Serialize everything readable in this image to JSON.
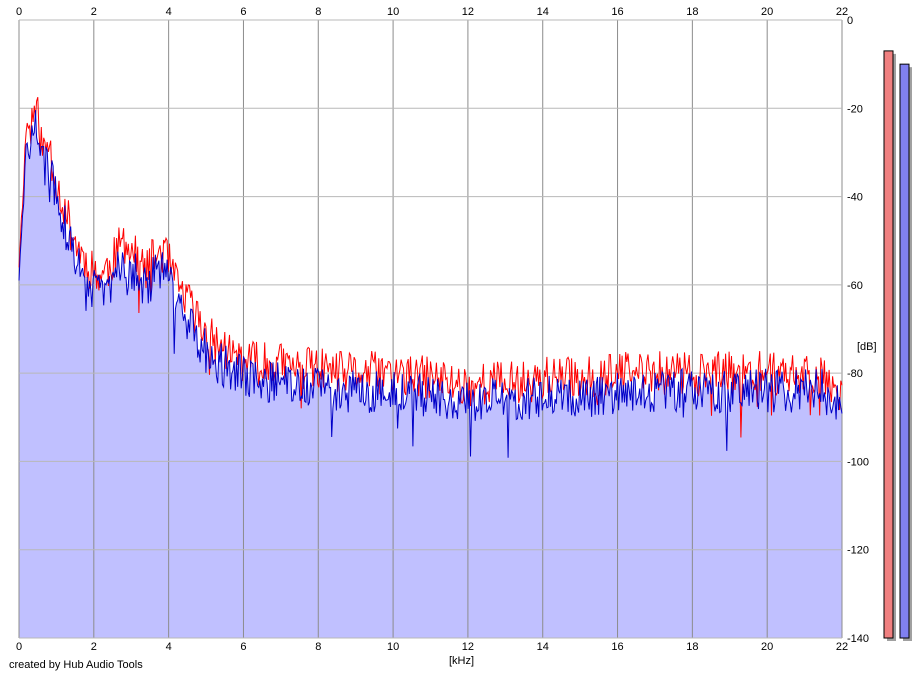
{
  "credit": "created by Hub Audio Tools",
  "colors": {
    "background": "#ffffff",
    "grid": "#b8b8b8",
    "grid_major": "#8c8c8c",
    "fill": "#c0c0ff",
    "left_channel": "#ff0000",
    "right_channel": "#0000c8",
    "left_meter": "#f08080",
    "right_meter": "#8080f0"
  },
  "chart_data": {
    "type": "line",
    "title": "",
    "xlabel": "[kHz]",
    "ylabel": "[dB]",
    "xlim": [
      0,
      22
    ],
    "ylim": [
      -140,
      0
    ],
    "x_ticks": [
      "0",
      "2",
      "4",
      "6",
      "8",
      "10",
      "12",
      "14",
      "16",
      "18",
      "20",
      "22"
    ],
    "x_tick_values": [
      0,
      2,
      4,
      6,
      8,
      10,
      12,
      14,
      16,
      18,
      20,
      22
    ],
    "y_ticks": [
      "0",
      "-20",
      "-40",
      "-60",
      "-80",
      "-100",
      "-120",
      "-140"
    ],
    "y_tick_values": [
      0,
      -20,
      -40,
      -60,
      -80,
      -100,
      -120,
      -140
    ],
    "grid": true,
    "x_tick_labels_top_and_bottom": true,
    "y_tick_labels_side": "right",
    "filled_below": true,
    "series": [
      {
        "channel": "left",
        "color": "#ff0000",
        "x": [
          0,
          0.1,
          0.2,
          0.3,
          0.4,
          0.5,
          0.6,
          0.7,
          0.8,
          0.9,
          1.0,
          1.1,
          1.2,
          1.4,
          1.6,
          1.8,
          2.0,
          2.2,
          2.4,
          2.6,
          2.8,
          3.0,
          3.2,
          3.4,
          3.6,
          3.8,
          4.0,
          4.2,
          4.4,
          4.6,
          4.8,
          5.0,
          5.2,
          5.4,
          5.6,
          5.8,
          6.0,
          6.5,
          7.0,
          7.5,
          8.0,
          8.5,
          9.0,
          9.5,
          10.0,
          10.5,
          11.0,
          11.5,
          12.0,
          12.5,
          13.0,
          13.5,
          14.0,
          14.5,
          15.0,
          15.5,
          16.0,
          16.5,
          17.0,
          17.5,
          18.0,
          18.5,
          19.0,
          19.5,
          20.0,
          20.5,
          21.0,
          21.5,
          22.0
        ],
        "y": [
          -55,
          -40,
          -23,
          -25,
          -20,
          -22,
          -28,
          -30,
          -27,
          -33,
          -36,
          -40,
          -42,
          -48,
          -52,
          -55,
          -57,
          -58,
          -56,
          -53,
          -50,
          -52,
          -55,
          -57,
          -54,
          -52,
          -55,
          -60,
          -62,
          -65,
          -68,
          -71,
          -73,
          -74,
          -75,
          -76,
          -77,
          -78,
          -78,
          -79,
          -79,
          -80,
          -80,
          -80,
          -80,
          -81,
          -81,
          -82,
          -83,
          -82,
          -82,
          -82,
          -81,
          -81,
          -81,
          -81,
          -80,
          -80,
          -80,
          -80,
          -80,
          -80,
          -80,
          -80,
          -80,
          -80,
          -80,
          -80,
          -84
        ]
      },
      {
        "channel": "right",
        "color": "#0000c8",
        "x": [
          0,
          0.1,
          0.2,
          0.3,
          0.4,
          0.5,
          0.6,
          0.7,
          0.8,
          0.9,
          1.0,
          1.1,
          1.2,
          1.4,
          1.6,
          1.8,
          2.0,
          2.2,
          2.4,
          2.6,
          2.8,
          3.0,
          3.2,
          3.4,
          3.6,
          3.8,
          4.0,
          4.2,
          4.4,
          4.6,
          4.8,
          5.0,
          5.2,
          5.4,
          5.6,
          5.8,
          6.0,
          6.5,
          7.0,
          7.5,
          8.0,
          8.5,
          9.0,
          9.5,
          10.0,
          10.5,
          11.0,
          11.5,
          12.0,
          12.5,
          13.0,
          13.5,
          14.0,
          14.5,
          15.0,
          15.5,
          16.0,
          16.5,
          17.0,
          17.5,
          18.0,
          18.5,
          19.0,
          19.5,
          20.0,
          20.5,
          21.0,
          21.5,
          22.0
        ],
        "y": [
          -58,
          -45,
          -28,
          -30,
          -24,
          -26,
          -32,
          -34,
          -31,
          -37,
          -40,
          -44,
          -46,
          -52,
          -56,
          -59,
          -61,
          -62,
          -60,
          -57,
          -55,
          -56,
          -59,
          -61,
          -58,
          -56,
          -59,
          -64,
          -66,
          -69,
          -72,
          -75,
          -77,
          -78,
          -79,
          -80,
          -81,
          -82,
          -82,
          -83,
          -83,
          -84,
          -84,
          -84,
          -84,
          -85,
          -85,
          -86,
          -87,
          -86,
          -86,
          -86,
          -85,
          -85,
          -85,
          -85,
          -84,
          -84,
          -84,
          -84,
          -84,
          -84,
          -84,
          -84,
          -84,
          -84,
          -84,
          -84,
          -88
        ]
      }
    ],
    "meters": [
      {
        "channel": "left",
        "color": "#f08080",
        "level_db": -7
      },
      {
        "channel": "right",
        "color": "#8080f0",
        "level_db": -10
      }
    ]
  }
}
